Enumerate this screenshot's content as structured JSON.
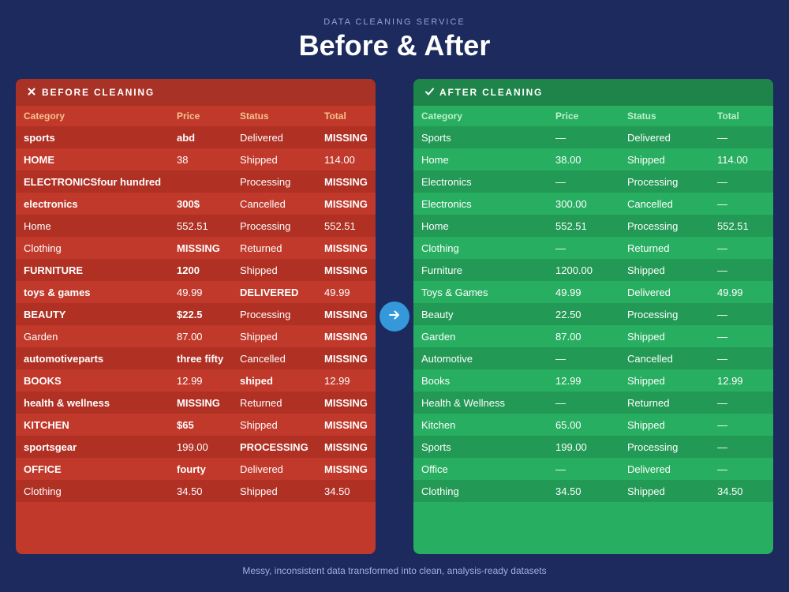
{
  "header": {
    "eyebrow": "DATA CLEANING SERVICE",
    "title": "Before & After"
  },
  "before": {
    "title": "BEFORE CLEANING",
    "icon": "close-icon",
    "columns": [
      "Category",
      "Price",
      "Status",
      "Total"
    ],
    "rows": [
      [
        "sports",
        "abd",
        "Delivered",
        "MISSING"
      ],
      [
        "HOME",
        "38",
        "Shipped",
        "114.00"
      ],
      [
        "ELECTRONICSfour hundred",
        "",
        "Processing",
        "MISSING"
      ],
      [
        "electronics",
        "300$",
        "Cancelled",
        "MISSING"
      ],
      [
        "Home",
        "552.51",
        "Processing",
        "552.51"
      ],
      [
        "Clothing",
        "MISSING",
        "Returned",
        "MISSING"
      ],
      [
        "FURNITURE",
        "1200",
        "Shipped",
        "MISSING"
      ],
      [
        "toys & games",
        "49.99",
        "DELIVERED",
        "49.99"
      ],
      [
        "BEAUTY",
        "$22.5",
        "Processing",
        "MISSING"
      ],
      [
        "Garden",
        "87.00",
        "Shipped",
        "MISSING"
      ],
      [
        "automotiveparts",
        "three fifty",
        "Cancelled",
        "MISSING"
      ],
      [
        "BOOKS",
        "12.99",
        "shiped",
        "12.99"
      ],
      [
        "health & wellness",
        "MISSING",
        "Returned",
        "MISSING"
      ],
      [
        "KITCHEN",
        "$65",
        "Shipped",
        "MISSING"
      ],
      [
        "sportsgear",
        "199.00",
        "PROCESSING",
        "MISSING"
      ],
      [
        "OFFICE",
        "fourty",
        "Delivered",
        "MISSING"
      ],
      [
        "Clothing",
        "34.50",
        "Shipped",
        "34.50"
      ]
    ],
    "errors": [
      [
        true,
        true,
        false,
        true
      ],
      [
        true,
        false,
        false,
        false
      ],
      [
        true,
        false,
        false,
        true
      ],
      [
        true,
        true,
        false,
        true
      ],
      [
        false,
        false,
        false,
        false
      ],
      [
        false,
        true,
        false,
        true
      ],
      [
        true,
        true,
        false,
        true
      ],
      [
        true,
        false,
        true,
        false
      ],
      [
        true,
        true,
        false,
        true
      ],
      [
        false,
        false,
        false,
        true
      ],
      [
        true,
        true,
        false,
        true
      ],
      [
        true,
        false,
        true,
        false
      ],
      [
        true,
        true,
        false,
        true
      ],
      [
        true,
        true,
        false,
        true
      ],
      [
        true,
        false,
        true,
        true
      ],
      [
        true,
        true,
        false,
        true
      ],
      [
        false,
        false,
        false,
        false
      ]
    ]
  },
  "after": {
    "title": "AFTER CLEANING",
    "icon": "checkmark-icon",
    "columns": [
      "Category",
      "Price",
      "Status",
      "Total"
    ],
    "rows": [
      [
        "Sports",
        "—",
        "Delivered",
        "—"
      ],
      [
        "Home",
        "38.00",
        "Shipped",
        "114.00"
      ],
      [
        "Electronics",
        "—",
        "Processing",
        "—"
      ],
      [
        "Electronics",
        "300.00",
        "Cancelled",
        "—"
      ],
      [
        "Home",
        "552.51",
        "Processing",
        "552.51"
      ],
      [
        "Clothing",
        "—",
        "Returned",
        "—"
      ],
      [
        "Furniture",
        "1200.00",
        "Shipped",
        "—"
      ],
      [
        "Toys & Games",
        "49.99",
        "Delivered",
        "49.99"
      ],
      [
        "Beauty",
        "22.50",
        "Processing",
        "—"
      ],
      [
        "Garden",
        "87.00",
        "Shipped",
        "—"
      ],
      [
        "Automotive",
        "—",
        "Cancelled",
        "—"
      ],
      [
        "Books",
        "12.99",
        "Shipped",
        "12.99"
      ],
      [
        "Health & Wellness",
        "—",
        "Returned",
        "—"
      ],
      [
        "Kitchen",
        "65.00",
        "Shipped",
        "—"
      ],
      [
        "Sports",
        "199.00",
        "Processing",
        "—"
      ],
      [
        "Office",
        "—",
        "Delivered",
        "—"
      ],
      [
        "Clothing",
        "34.50",
        "Shipped",
        "34.50"
      ]
    ]
  },
  "arrow": {
    "icon": "arrow-right-icon"
  },
  "footer": {
    "caption": "Messy, inconsistent data transformed into clean, analysis-ready datasets"
  },
  "colors": {
    "background": "#1c2a5e",
    "before_panel": "#c0392b",
    "after_panel": "#27ae60",
    "arrow_button": "#3498db"
  }
}
